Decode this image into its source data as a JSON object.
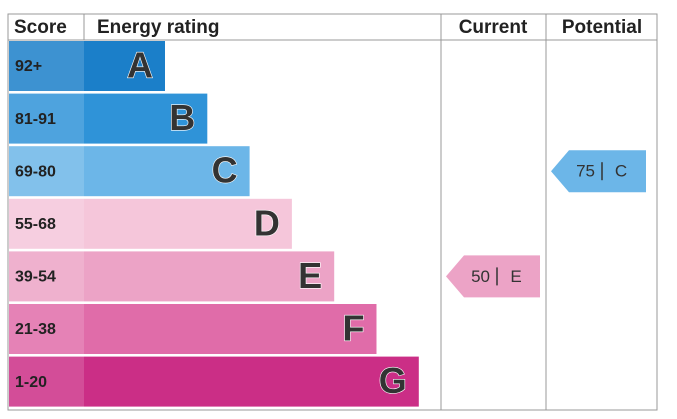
{
  "header": {
    "score": "Score",
    "rating": "Energy rating",
    "current": "Current",
    "potential": "Potential"
  },
  "bands": [
    {
      "score": "92+",
      "letter": "A",
      "color": "#1b7fc9"
    },
    {
      "score": "81-91",
      "letter": "B",
      "color": "#2f93d8"
    },
    {
      "score": "69-80",
      "letter": "C",
      "color": "#6cb6e8"
    },
    {
      "score": "55-68",
      "letter": "D",
      "color": "#f5c6da"
    },
    {
      "score": "39-54",
      "letter": "E",
      "color": "#eca3c6"
    },
    {
      "score": "21-38",
      "letter": "F",
      "color": "#e06ca9"
    },
    {
      "score": "1-20",
      "letter": "G",
      "color": "#cb2e86"
    }
  ],
  "current": {
    "value": 50,
    "letter": "E"
  },
  "potential": {
    "value": 75,
    "letter": "C"
  }
}
